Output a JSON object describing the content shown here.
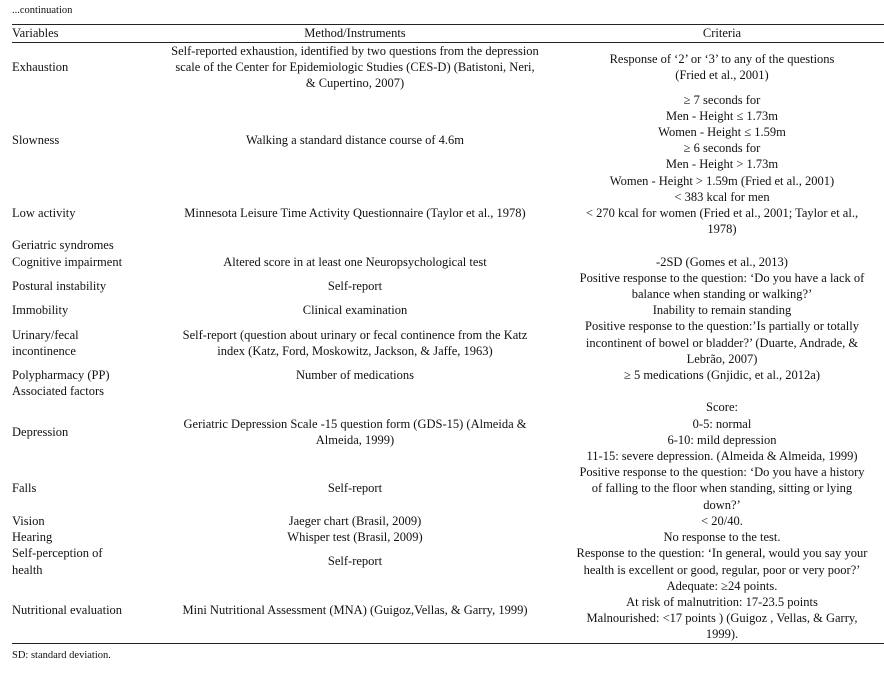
{
  "continuation": "...continuation",
  "headers": [
    "Variables",
    "Method/Instruments",
    "Criteria"
  ],
  "rows": [
    {
      "variable": [
        "Exhaustion"
      ],
      "method": [
        "Self-reported exhaustion, identified by two questions from the depression",
        "scale of the Center for Epidemiologic Studies (CES-D) (Batistoni, Neri,",
        "& Cupertino, 2007)"
      ],
      "criteria": [
        "Response of ‘2’ or ‘3’ to any of the questions",
        "(Fried et al., 2001)"
      ]
    },
    {
      "variable": [
        "Slowness"
      ],
      "method": [
        "Walking a standard distance course of 4.6m"
      ],
      "criteria": [
        "≥ 7 seconds for",
        "Men - Height ≤ 1.73m",
        "Women - Height ≤ 1.59m",
        "≥ 6 seconds for",
        "Men - Height > 1.73m",
        "Women - Height > 1.59m (Fried et al., 2001)"
      ]
    },
    {
      "variable": [
        "Low activity"
      ],
      "method": [
        "Minnesota Leisure Time Activity Questionnaire (Taylor et al., 1978)"
      ],
      "criteria": [
        "< 383 kcal for men",
        "< 270 kcal for women (Fried et al., 2001; Taylor et al.,",
        "1978)"
      ]
    },
    {
      "variable": [
        "Geriatric syndromes"
      ],
      "method": [],
      "criteria": []
    },
    {
      "variable": [
        "Cognitive impairment"
      ],
      "method": [
        "Altered score in at least one Neuropsychological test"
      ],
      "criteria": [
        "-2SD (Gomes et al., 2013)"
      ]
    },
    {
      "variable": [
        "Postural instability"
      ],
      "method": [
        "Self-report"
      ],
      "criteria": [
        "Positive response to the question: ‘Do you have a lack of",
        "balance when standing or walking?’"
      ]
    },
    {
      "variable": [
        "Immobility"
      ],
      "method": [
        "Clinical examination"
      ],
      "criteria": [
        "Inability to remain standing"
      ]
    },
    {
      "variable": [
        "Urinary/fecal",
        "incontinence"
      ],
      "method": [
        "Self-report (question about urinary or fecal continence from the Katz",
        "index (Katz, Ford, Moskowitz, Jackson, & Jaffe, 1963)"
      ],
      "criteria": [
        "Positive response to the question:’Is partially or totally",
        "incontinent of bowel or bladder?’ (Duarte, Andrade, &",
        "Lebrão, 2007)"
      ]
    },
    {
      "variable": [
        "Polypharmacy (PP)"
      ],
      "method": [
        "Number of medications"
      ],
      "criteria": [
        "≥ 5 medications (Gnjidic, et al., 2012a)"
      ]
    },
    {
      "variable": [
        "Associated factors"
      ],
      "method": [],
      "criteria": []
    },
    {
      "variable": [
        "Depression"
      ],
      "method": [
        "Geriatric Depression Scale -15 question form (GDS-15) (Almeida &",
        "Almeida, 1999)"
      ],
      "criteria": [
        "Score:",
        "0-5: normal",
        "6-10: mild depression",
        "11-15: severe depression. (Almeida & Almeida, 1999)"
      ]
    },
    {
      "variable": [
        "Falls"
      ],
      "method": [
        "Self-report"
      ],
      "criteria": [
        "Positive response to the question: ‘Do you have a history",
        "of falling to the floor when standing, sitting or lying",
        "down?’"
      ]
    },
    {
      "variable": [
        "Vision"
      ],
      "method": [
        "Jaeger chart (Brasil, 2009)"
      ],
      "criteria": [
        "< 20/40."
      ]
    },
    {
      "variable": [
        "Hearing"
      ],
      "method": [
        "Whisper test (Brasil, 2009)"
      ],
      "criteria": [
        "No response to the test."
      ]
    },
    {
      "variable": [
        "Self-perception of",
        "health"
      ],
      "method": [
        "Self-report"
      ],
      "criteria": [
        "Response to the question: ‘In general, would you say your",
        "health is excellent or good, regular, poor or very poor?’"
      ]
    },
    {
      "variable": [
        "Nutritional evaluation"
      ],
      "method": [
        "Mini Nutritional Assessment (MNA) (Guigoz,Vellas, & Garry, 1999)"
      ],
      "criteria": [
        "Adequate: ≥24 points.",
        "At risk of malnutrition: 17-23.5 points",
        "Malnourished: <17 points ) (Guigoz , Vellas, & Garry,",
        "1999)."
      ]
    }
  ],
  "footnote": "SD: standard deviation."
}
